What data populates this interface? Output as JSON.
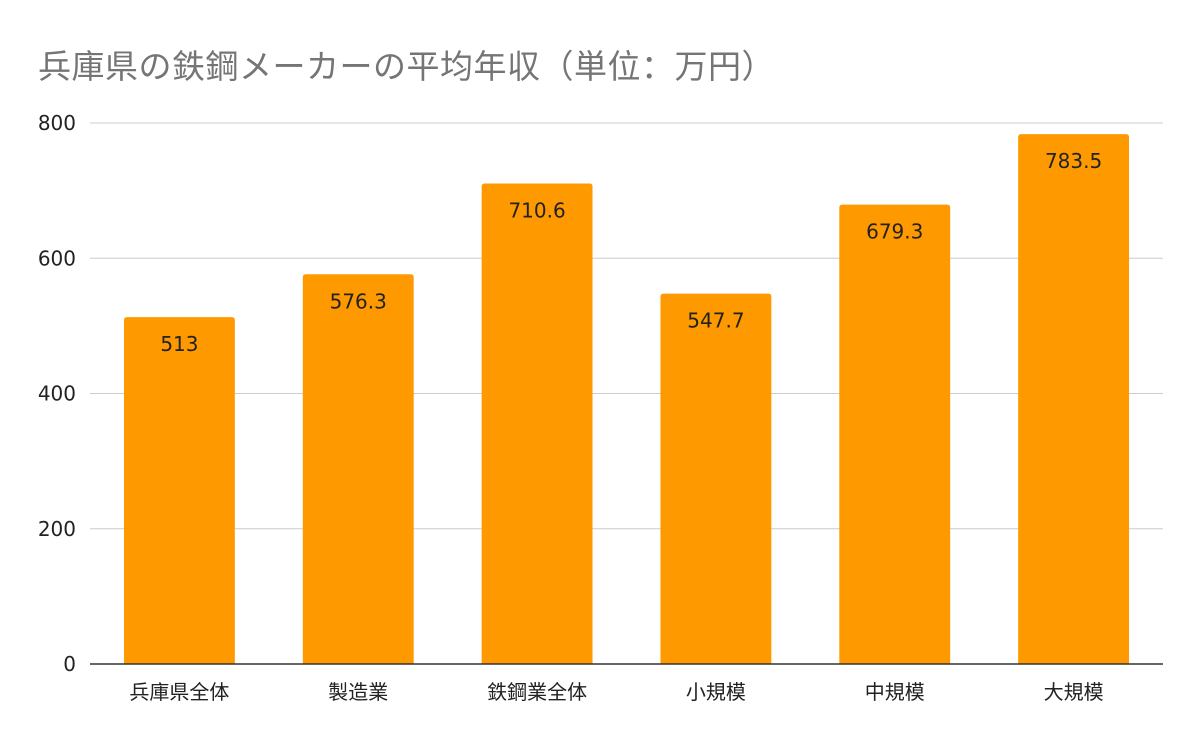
{
  "chart_data": {
    "type": "bar",
    "title": "兵庫県の鉄鋼メーカーの平均年収（単位：万円）",
    "categories": [
      "兵庫県全体",
      "製造業",
      "鉄鋼業全体",
      "小規模",
      "中規模",
      "大規模"
    ],
    "values": [
      513,
      576.3,
      710.6,
      547.7,
      679.3,
      783.5
    ],
    "data_labels": [
      "513",
      "576.3",
      "710.6",
      "547.7",
      "679.3",
      "783.5"
    ],
    "ylim": [
      0,
      800
    ],
    "yticks": [
      0,
      200,
      400,
      600,
      800
    ],
    "grid": true,
    "legend": "none",
    "colors": {
      "bar": "#ff9900",
      "grid": "#cccccc",
      "axis": "#333333",
      "title": "#757575",
      "label": "#222222"
    }
  }
}
